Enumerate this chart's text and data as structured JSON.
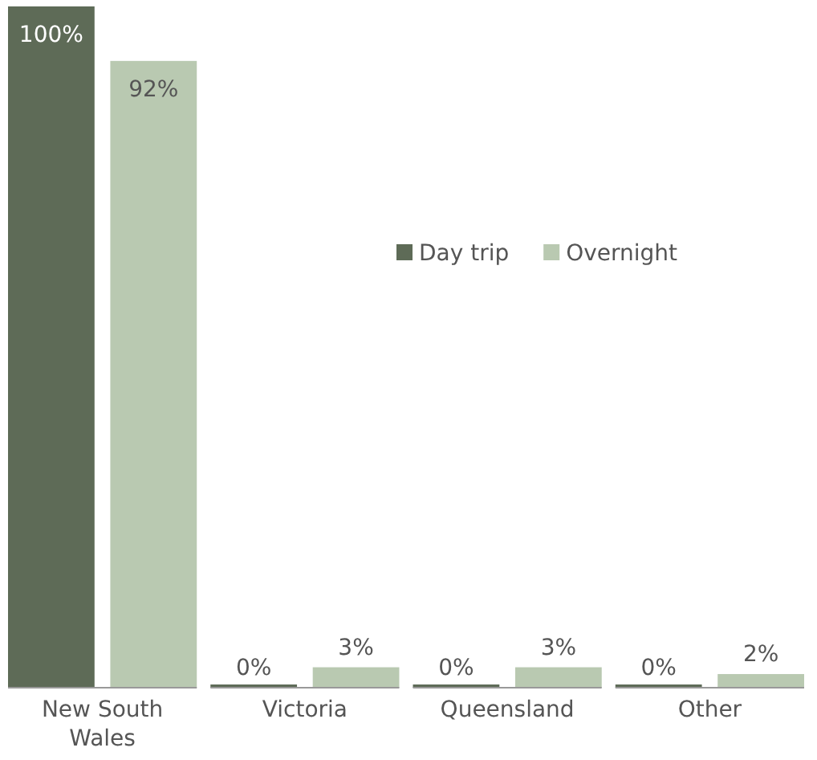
{
  "chart_data": {
    "type": "bar",
    "categories": [
      "New South Wales",
      "Victoria",
      "Queensland",
      "Other"
    ],
    "series": [
      {
        "name": "Day trip",
        "color": "#5e6b57",
        "values": [
          100,
          0,
          0,
          0
        ],
        "value_labels": [
          "100%",
          "0%",
          "0%",
          "0%"
        ]
      },
      {
        "name": "Overnight",
        "color": "#b9c9b1",
        "values": [
          92,
          3,
          3,
          2
        ],
        "value_labels": [
          "92%",
          "3%",
          "3%",
          "2%"
        ]
      }
    ],
    "legend": "right"
  }
}
